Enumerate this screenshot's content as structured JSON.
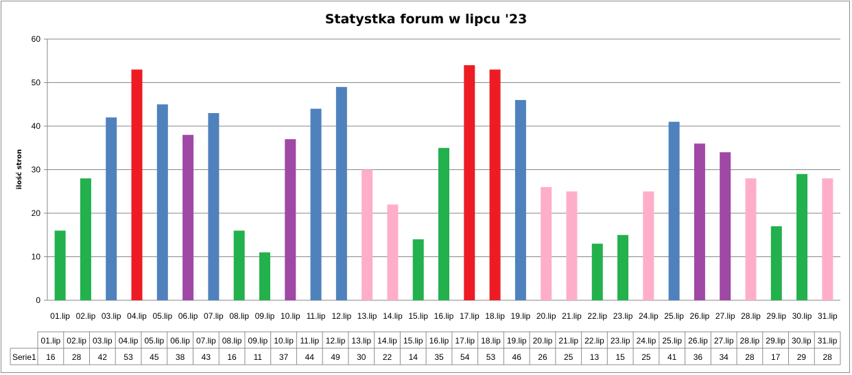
{
  "chart_data": {
    "type": "bar",
    "title": "Statystka forum w lipcu '23",
    "ylabel": "ilość stron",
    "xlabel": "",
    "ylim": [
      0,
      60
    ],
    "yticks": [
      0,
      10,
      20,
      30,
      40,
      50,
      60
    ],
    "grid": true,
    "legend": "none",
    "categories": [
      "01.lip",
      "02.lip",
      "03.lip",
      "04.lip",
      "05.lip",
      "06.lip",
      "07.lip",
      "08.lip",
      "09.lip",
      "10.lip",
      "11.lip",
      "12.lip",
      "13.lip",
      "14.lip",
      "15.lip",
      "16.lip",
      "17.lip",
      "18.lip",
      "19.lip",
      "20.lip",
      "21.lip",
      "22.lip",
      "23.lip",
      "24.lip",
      "25.lip",
      "26.lip",
      "27.lip",
      "28.lip",
      "29.lip",
      "30.lip",
      "31.lip"
    ],
    "series": [
      {
        "name": "Serie1",
        "values": [
          16,
          28,
          42,
          53,
          45,
          38,
          43,
          16,
          11,
          37,
          44,
          49,
          30,
          22,
          14,
          35,
          54,
          53,
          46,
          26,
          25,
          13,
          15,
          25,
          41,
          36,
          34,
          28,
          17,
          29,
          28
        ],
        "colors": [
          "#22b14c",
          "#22b14c",
          "#4f81bd",
          "#ed1c24",
          "#4f81bd",
          "#9f48a6",
          "#4f81bd",
          "#22b14c",
          "#22b14c",
          "#9f48a6",
          "#4f81bd",
          "#4f81bd",
          "#ffaec9",
          "#ffaec9",
          "#22b14c",
          "#22b14c",
          "#ed1c24",
          "#ed1c24",
          "#4f81bd",
          "#ffaec9",
          "#ffaec9",
          "#22b14c",
          "#22b14c",
          "#ffaec9",
          "#4f81bd",
          "#9f48a6",
          "#9f48a6",
          "#ffaec9",
          "#22b14c",
          "#22b14c",
          "#ffaec9"
        ]
      }
    ],
    "data_table": true
  }
}
